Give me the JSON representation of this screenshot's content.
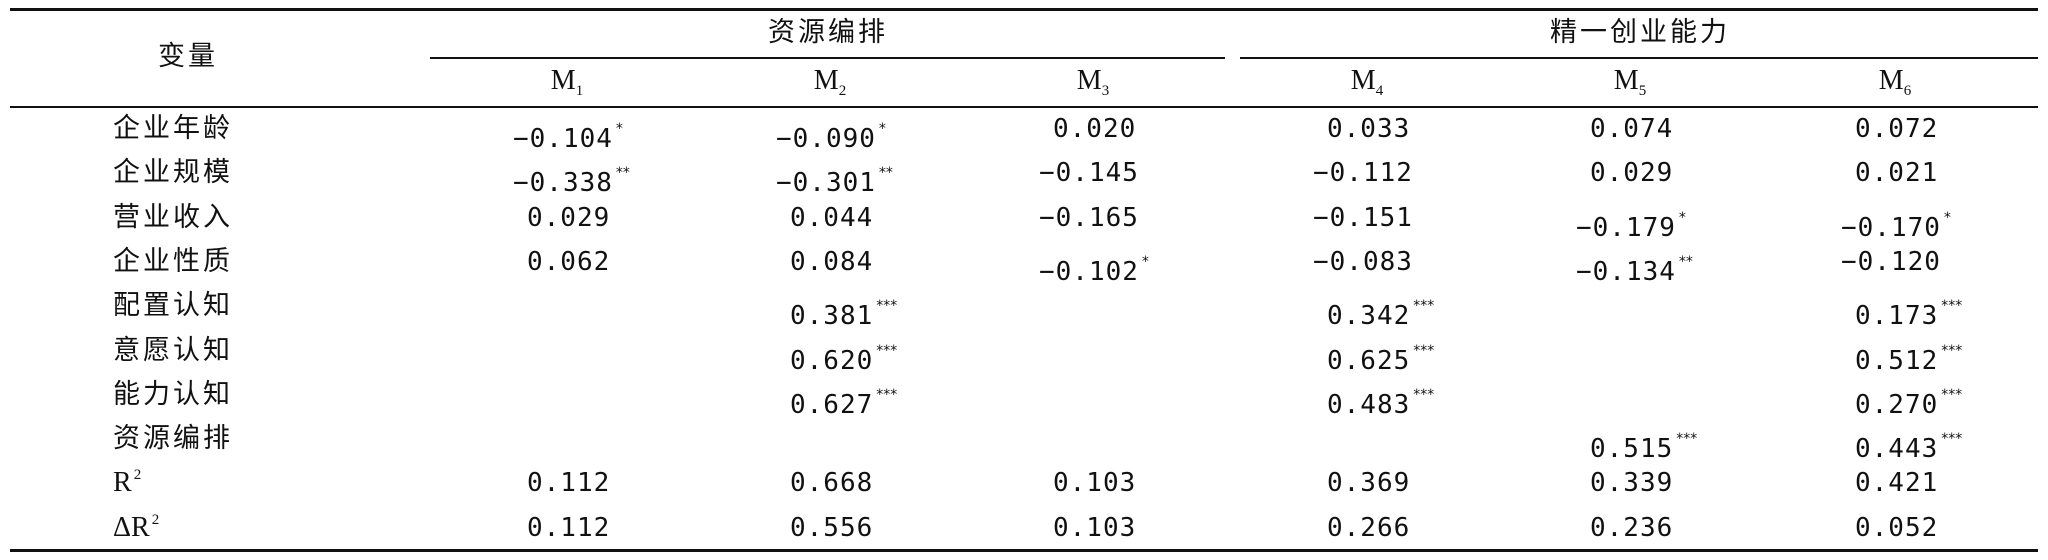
{
  "table": {
    "corner_label": "变量",
    "group_headers": [
      "资源编排",
      "精一创业能力"
    ],
    "models": [
      {
        "base": "M",
        "sub": "1"
      },
      {
        "base": "M",
        "sub": "2"
      },
      {
        "base": "M",
        "sub": "3"
      },
      {
        "base": "M",
        "sub": "4"
      },
      {
        "base": "M",
        "sub": "5"
      },
      {
        "base": "M",
        "sub": "6"
      }
    ],
    "rows": [
      {
        "label": "企业年龄",
        "cells": [
          {
            "v": "−0.104",
            "s": "*"
          },
          {
            "v": "−0.090",
            "s": "*"
          },
          {
            "v": "0.020",
            "s": ""
          },
          {
            "v": "0.033",
            "s": ""
          },
          {
            "v": "0.074",
            "s": ""
          },
          {
            "v": "0.072",
            "s": ""
          }
        ]
      },
      {
        "label": "企业规模",
        "cells": [
          {
            "v": "−0.338",
            "s": "**"
          },
          {
            "v": "−0.301",
            "s": "**"
          },
          {
            "v": "−0.145",
            "s": ""
          },
          {
            "v": "−0.112",
            "s": ""
          },
          {
            "v": "0.029",
            "s": ""
          },
          {
            "v": "0.021",
            "s": ""
          }
        ]
      },
      {
        "label": "营业收入",
        "cells": [
          {
            "v": "0.029",
            "s": ""
          },
          {
            "v": "0.044",
            "s": ""
          },
          {
            "v": "−0.165",
            "s": ""
          },
          {
            "v": "−0.151",
            "s": ""
          },
          {
            "v": "−0.179",
            "s": "*"
          },
          {
            "v": "−0.170",
            "s": "*"
          }
        ]
      },
      {
        "label": "企业性质",
        "cells": [
          {
            "v": "0.062",
            "s": ""
          },
          {
            "v": "0.084",
            "s": ""
          },
          {
            "v": "−0.102",
            "s": "*"
          },
          {
            "v": "−0.083",
            "s": ""
          },
          {
            "v": "−0.134",
            "s": "**"
          },
          {
            "v": "−0.120",
            "s": ""
          }
        ]
      },
      {
        "label": "配置认知",
        "cells": [
          {
            "v": "",
            "s": ""
          },
          {
            "v": "0.381",
            "s": "***"
          },
          {
            "v": "",
            "s": ""
          },
          {
            "v": "0.342",
            "s": "***"
          },
          {
            "v": "",
            "s": ""
          },
          {
            "v": "0.173",
            "s": "***"
          }
        ]
      },
      {
        "label": "意愿认知",
        "cells": [
          {
            "v": "",
            "s": ""
          },
          {
            "v": "0.620",
            "s": "***"
          },
          {
            "v": "",
            "s": ""
          },
          {
            "v": "0.625",
            "s": "***"
          },
          {
            "v": "",
            "s": ""
          },
          {
            "v": "0.512",
            "s": "***"
          }
        ]
      },
      {
        "label": "能力认知",
        "cells": [
          {
            "v": "",
            "s": ""
          },
          {
            "v": "0.627",
            "s": "***"
          },
          {
            "v": "",
            "s": ""
          },
          {
            "v": "0.483",
            "s": "***"
          },
          {
            "v": "",
            "s": ""
          },
          {
            "v": "0.270",
            "s": "***"
          }
        ]
      },
      {
        "label": "资源编排",
        "cells": [
          {
            "v": "",
            "s": ""
          },
          {
            "v": "",
            "s": ""
          },
          {
            "v": "",
            "s": ""
          },
          {
            "v": "",
            "s": ""
          },
          {
            "v": "0.515",
            "s": "***"
          },
          {
            "v": "0.443",
            "s": "***"
          }
        ]
      },
      {
        "label": "R",
        "label_sup": "2",
        "cells": [
          {
            "v": "0.112",
            "s": ""
          },
          {
            "v": "0.668",
            "s": ""
          },
          {
            "v": "0.103",
            "s": ""
          },
          {
            "v": "0.369",
            "s": ""
          },
          {
            "v": "0.339",
            "s": ""
          },
          {
            "v": "0.421",
            "s": ""
          }
        ]
      },
      {
        "label": "ΔR",
        "label_sup": "2",
        "cells": [
          {
            "v": "0.112",
            "s": ""
          },
          {
            "v": "0.556",
            "s": ""
          },
          {
            "v": "0.103",
            "s": ""
          },
          {
            "v": "0.266",
            "s": ""
          },
          {
            "v": "0.236",
            "s": ""
          },
          {
            "v": "0.052",
            "s": ""
          }
        ]
      }
    ]
  }
}
